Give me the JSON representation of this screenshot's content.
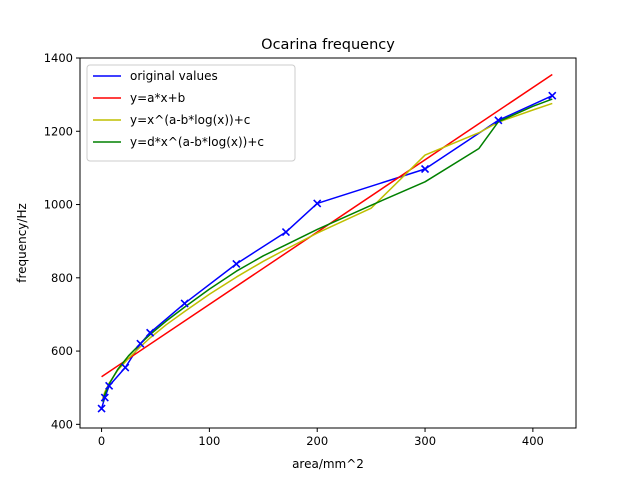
{
  "chart_data": {
    "type": "line",
    "title": "Ocarina frequency",
    "xlabel": "area/mm^2",
    "ylabel": "frequency/Hz",
    "xlim": [
      -20,
      440
    ],
    "ylim": [
      390,
      1400
    ],
    "xticks": [
      0,
      100,
      200,
      300,
      400
    ],
    "yticks": [
      400,
      600,
      800,
      1000,
      1200,
      1400
    ],
    "grid": false,
    "legend_position": "top-left",
    "series": [
      {
        "name": "original values",
        "color": "#0000ff",
        "marker": "x",
        "x": [
          0,
          3,
          7,
          22,
          36,
          45,
          77,
          125,
          171,
          200,
          300,
          368,
          418
        ],
        "y": [
          443,
          473,
          505,
          555,
          620,
          650,
          730,
          838,
          925,
          1003,
          1097,
          1230,
          1297
        ]
      },
      {
        "name": "y=a*x+b",
        "color": "#ff0000",
        "x": [
          0,
          418
        ],
        "y": [
          530,
          1355
        ]
      },
      {
        "name": "y=x^(a-b*log(x))+c",
        "color": "#bfbf00",
        "x": [
          1,
          3,
          7,
          15,
          25,
          36,
          45,
          60,
          77,
          100,
          125,
          150,
          171,
          200,
          250,
          300,
          350,
          368,
          400,
          418
        ],
        "y": [
          470,
          488,
          512,
          548,
          580,
          612,
          636,
          672,
          708,
          755,
          802,
          845,
          878,
          922,
          990,
          1135,
          1196,
          1225,
          1258,
          1276
        ]
      },
      {
        "name": "y=d*x^(a-b*log(x))+c",
        "color": "#008000",
        "x": [
          1,
          3,
          7,
          15,
          25,
          36,
          45,
          60,
          77,
          100,
          125,
          150,
          171,
          200,
          250,
          300,
          350,
          368,
          400,
          418
        ],
        "y": [
          462,
          482,
          510,
          550,
          587,
          620,
          645,
          682,
          720,
          769,
          818,
          860,
          890,
          932,
          998,
          1062,
          1153,
          1226,
          1268,
          1288
        ]
      }
    ]
  }
}
